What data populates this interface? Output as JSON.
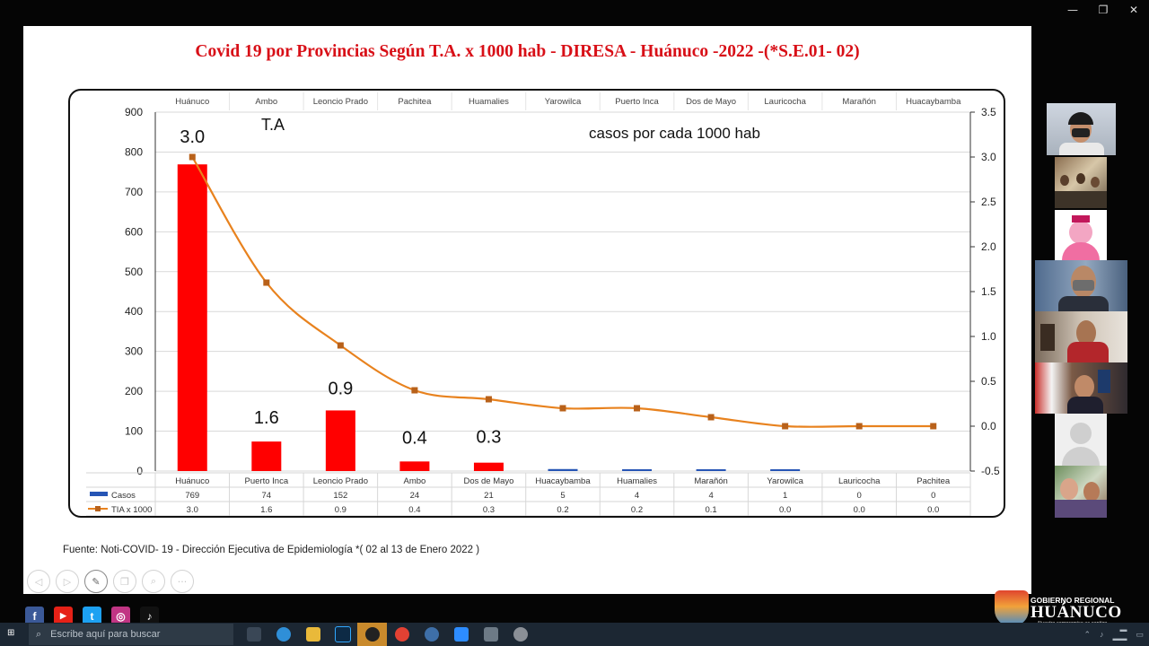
{
  "window": {
    "controls": [
      "—",
      "❐",
      "✕"
    ]
  },
  "slide": {
    "title": "Covid 19  por  Provincias  Según T.A. x 1000 hab -  DIRESA - Huánuco -2022 -(*S.E.01- 02)",
    "source": "Fuente: Noti-COVID- 19 -  Dirección Ejecutiva de Epidemiología *( 02 al 13 de Enero 2022 )"
  },
  "chart_data": {
    "type": "bar",
    "top_categories": [
      "Huánuco",
      "Ambo",
      "Leoncio Prado",
      "Pachitea",
      "Huamalies",
      "Yarowilca",
      "Puerto Inca",
      "Dos de Mayo",
      "Lauricocha",
      "Marañón",
      "Huacaybamba"
    ],
    "categories": [
      "Huánuco",
      "Puerto Inca",
      "Leoncio Prado",
      "Ambo",
      "Dos de Mayo",
      "Huacaybamba",
      "Huamalies",
      "Marañón",
      "Yarowilca",
      "Lauricocha",
      "Pachitea"
    ],
    "series": [
      {
        "name": "Casos",
        "type": "bar",
        "axis": "left",
        "color": "#ff0000",
        "values": [
          769,
          74,
          152,
          24,
          21,
          5,
          4,
          4,
          1,
          0,
          0
        ]
      },
      {
        "name": "TIA x 1000",
        "type": "line",
        "axis": "right",
        "color": "#e8821e",
        "values": [
          3.0,
          1.6,
          0.9,
          0.4,
          0.3,
          0.2,
          0.2,
          0.1,
          0.0,
          0.0,
          0.0
        ]
      }
    ],
    "table_values": {
      "casos": [
        "769",
        "74",
        "152",
        "24",
        "21",
        "5",
        "4",
        "4",
        "1",
        "0",
        "0"
      ],
      "tia": [
        "3.0",
        "1.6",
        "0.9",
        "0.4",
        "0.3",
        "0.2",
        "0.2",
        "0.1",
        "0.0",
        "0.0",
        "0.0"
      ]
    },
    "small_cases_color": "#2655b5",
    "ylim_left": [
      0,
      900
    ],
    "ylim_right": [
      -0.5,
      3.5
    ],
    "left_ticks": [
      "0",
      "100",
      "200",
      "300",
      "400",
      "500",
      "600",
      "700",
      "800",
      "900"
    ],
    "right_ticks": [
      "-0.5",
      "0.0",
      "0.5",
      "1.0",
      "1.5",
      "2.0",
      "2.5",
      "3.0",
      "3.5"
    ],
    "data_labels": [
      "3.0",
      "1.6",
      "0.9",
      "0.4",
      "0.3"
    ],
    "annotation_ta": "T.A",
    "annotation_text": "casos  por cada 1000 hab",
    "grid": true
  },
  "tools": [
    "◁",
    "▷",
    "✎",
    "❐",
    "⌕",
    "···"
  ],
  "social": [
    {
      "icon": "facebook-icon",
      "glyph": "f",
      "color": "#3b5998"
    },
    {
      "icon": "youtube-icon",
      "glyph": "▶",
      "color": "#e62117"
    },
    {
      "icon": "twitter-icon",
      "glyph": "t",
      "color": "#1da1f2"
    },
    {
      "icon": "instagram-icon",
      "glyph": "◎",
      "color": "#c13584"
    },
    {
      "icon": "tiktok-icon",
      "glyph": "♪",
      "color": "#111111"
    }
  ],
  "logo": {
    "small": "GOBIERNO REGIONAL",
    "big": "HUÁNUCO",
    "tag": "Nuestro compromiso es contigo"
  },
  "taskbar": {
    "search_placeholder": "Escribe aquí para buscar"
  }
}
